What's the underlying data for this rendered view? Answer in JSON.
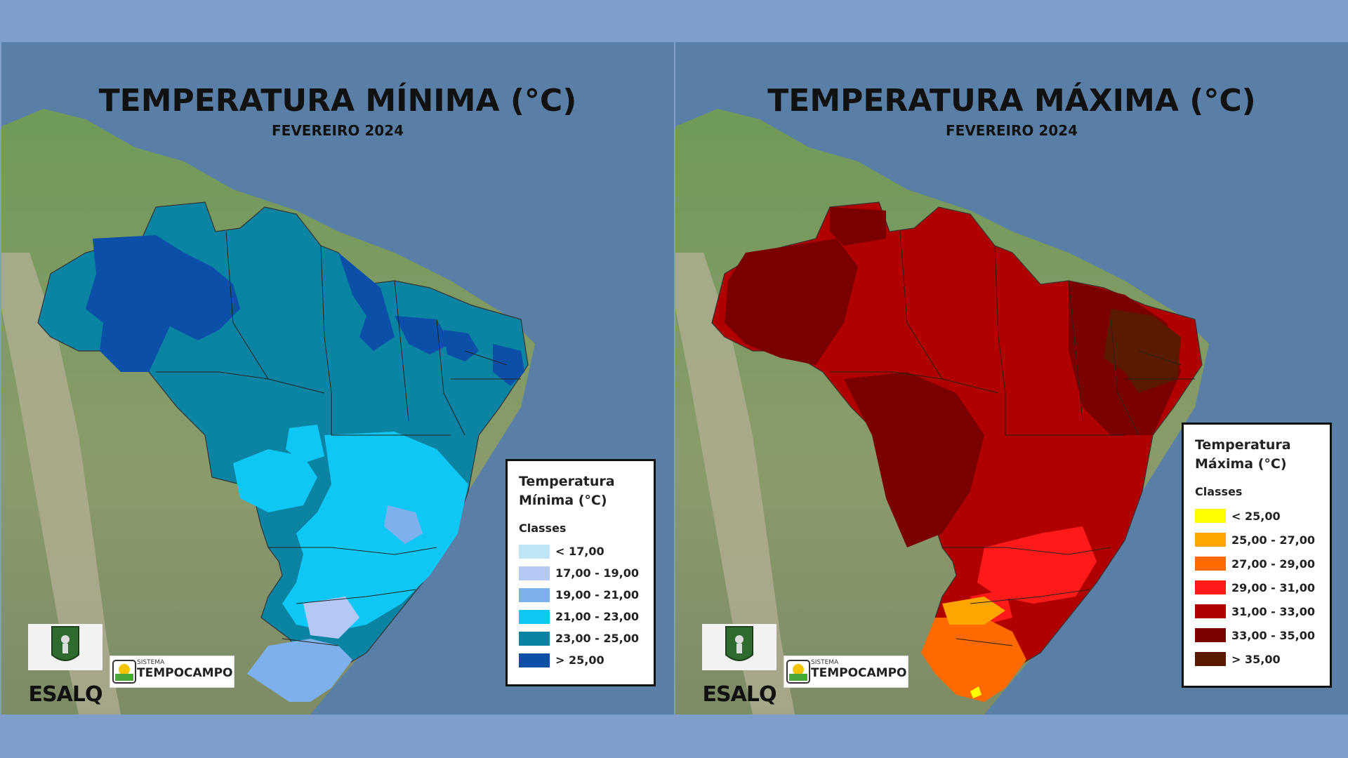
{
  "panels": [
    {
      "title": "TEMPERATURA MÍNIMA (°C)",
      "subtitle": "FEVEREIRO 2024",
      "legend": {
        "title_line1": "Temperatura",
        "title_line2": "Mínima (°C)",
        "classes_label": "Classes",
        "items": [
          {
            "label": "< 17,00",
            "color": "#bfe6f7"
          },
          {
            "label": "17,00 - 19,00",
            "color": "#b3c8f5"
          },
          {
            "label": "19,00 - 21,00",
            "color": "#7fb0ee"
          },
          {
            "label": "21,00 - 23,00",
            "color": "#0fc7f5"
          },
          {
            "label": "23,00 - 25,00",
            "color": "#0b83a3"
          },
          {
            "label": "> 25,00",
            "color": "#0c4fa8"
          }
        ]
      }
    },
    {
      "title": "TEMPERATURA MÁXIMA (°C)",
      "subtitle": "FEVEREIRO 2024",
      "legend": {
        "title_line1": "Temperatura",
        "title_line2": "Máxima (°C)",
        "classes_label": "Classes",
        "items": [
          {
            "label": "< 25,00",
            "color": "#ffff00"
          },
          {
            "label": "25,00 - 27,00",
            "color": "#ffa500"
          },
          {
            "label": "27,00 - 29,00",
            "color": "#ff6a00"
          },
          {
            "label": "29,00 - 31,00",
            "color": "#ff1a1a"
          },
          {
            "label": "31,00 - 33,00",
            "color": "#b00000"
          },
          {
            "label": "33,00 - 35,00",
            "color": "#7a0000"
          },
          {
            "label": "> 35,00",
            "color": "#5a1a00"
          }
        ]
      }
    }
  ],
  "logos": {
    "esalq": "ESALQ",
    "tempocampo_small": "SISTEMA",
    "tempocampo_big": "TEMPOCAMPO"
  },
  "icons": [
    "esalq-logo-icon",
    "tempocampo-logo-icon"
  ]
}
